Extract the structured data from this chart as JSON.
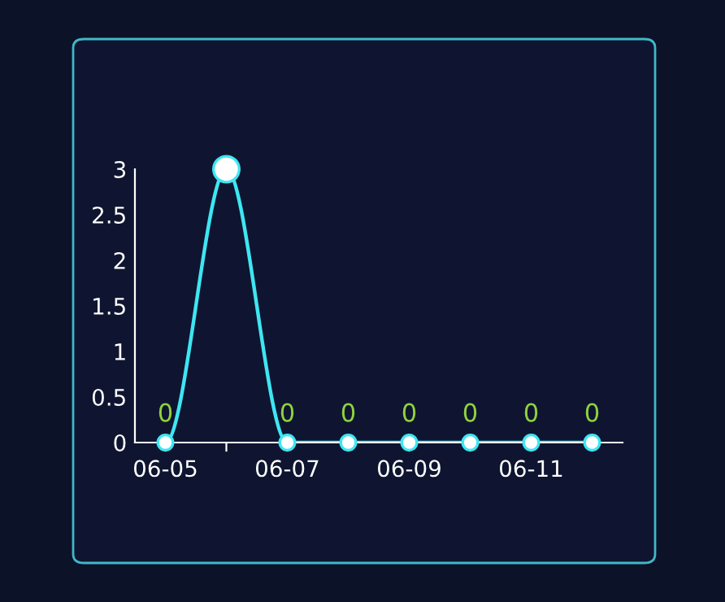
{
  "chart_data": {
    "type": "line",
    "categories": [
      "06-05",
      null,
      "06-07",
      null,
      "06-09",
      null,
      "06-11",
      null
    ],
    "series": [
      {
        "color": "#3ee6f2",
        "values": [
          0,
          3,
          0,
          0,
          0,
          0,
          0,
          0
        ],
        "value_labels": [
          "0",
          null,
          "0",
          "0",
          "0",
          "0",
          "0",
          "0"
        ]
      }
    ],
    "ylim": [
      0,
      3
    ],
    "yticks": [
      0,
      0.5,
      1,
      1.5,
      2,
      2.5,
      3
    ],
    "grid": false,
    "legend": false,
    "marker": "circle",
    "line_style": "solid"
  }
}
